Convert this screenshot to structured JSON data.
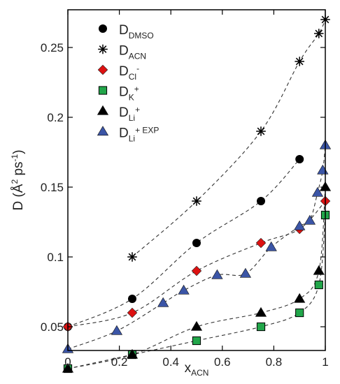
{
  "chart_data": {
    "type": "scatter",
    "xlabel": {
      "main": "x",
      "sub": "ACN"
    },
    "ylabel": {
      "pre": "D (",
      "a": "Å",
      "sup1": "2",
      "mid": " ps",
      "sup2": "-1",
      "post": ")"
    },
    "xlim": [
      0,
      1
    ],
    "ylim": [
      0.033,
      0.277
    ],
    "xticks": [
      0,
      0.2,
      0.4,
      0.6,
      0.8,
      1
    ],
    "xtick_labels": [
      "0",
      "0.2",
      "0.4",
      "0.6",
      "0.8",
      "1"
    ],
    "yticks": [
      0.05,
      0.1,
      0.15,
      0.2,
      0.25
    ],
    "ytick_labels": [
      "0.05",
      "0.1",
      "0.15",
      "0.2",
      "0.25"
    ],
    "legend_placement": "top-left",
    "series": [
      {
        "name": "D",
        "sub": "DMSO",
        "sup": "",
        "marker": "circle",
        "color": "#000000",
        "x": [
          0,
          0.25,
          0.5,
          0.75,
          0.9
        ],
        "y": [
          0.05,
          0.07,
          0.11,
          0.14,
          0.17
        ]
      },
      {
        "name": "D",
        "sub": "ACN",
        "sup": "",
        "marker": "star",
        "color": "#000000",
        "x": [
          0.25,
          0.5,
          0.75,
          0.9,
          0.975,
          1.0
        ],
        "y": [
          0.1,
          0.14,
          0.19,
          0.24,
          0.26,
          0.27
        ]
      },
      {
        "name": "D",
        "sub": "Cl",
        "sup": "-",
        "marker": "diamond",
        "color": "#dd1111",
        "x": [
          0,
          0.25,
          0.5,
          0.75,
          0.9,
          1.0
        ],
        "y": [
          0.05,
          0.06,
          0.09,
          0.11,
          0.12,
          0.14
        ]
      },
      {
        "name": "D",
        "sub": "K",
        "sup": "+",
        "marker": "square",
        "color": "#22a64a",
        "x": [
          0,
          0.25,
          0.5,
          0.75,
          0.9,
          0.975,
          1.0
        ],
        "y": [
          0.02,
          0.03,
          0.04,
          0.05,
          0.06,
          0.08,
          0.13
        ]
      },
      {
        "name": "D",
        "sub": "Li",
        "sup": "+",
        "marker": "triangle",
        "color": "#000000",
        "x": [
          0,
          0.25,
          0.5,
          0.75,
          0.9,
          0.975,
          1.0
        ],
        "y": [
          0.02,
          0.03,
          0.05,
          0.06,
          0.07,
          0.09,
          0.15
        ]
      },
      {
        "name": "D",
        "sub": "Li",
        "sup": "+ EXP",
        "marker": "triangle",
        "color": "#3b55a6",
        "x": [
          0,
          0.19,
          0.37,
          0.45,
          0.58,
          0.69,
          0.79,
          0.9,
          0.94,
          0.97,
          0.99,
          1.0
        ],
        "y": [
          0.034,
          0.047,
          0.067,
          0.076,
          0.087,
          0.088,
          0.107,
          0.122,
          0.126,
          0.146,
          0.162,
          0.18
        ]
      }
    ]
  }
}
